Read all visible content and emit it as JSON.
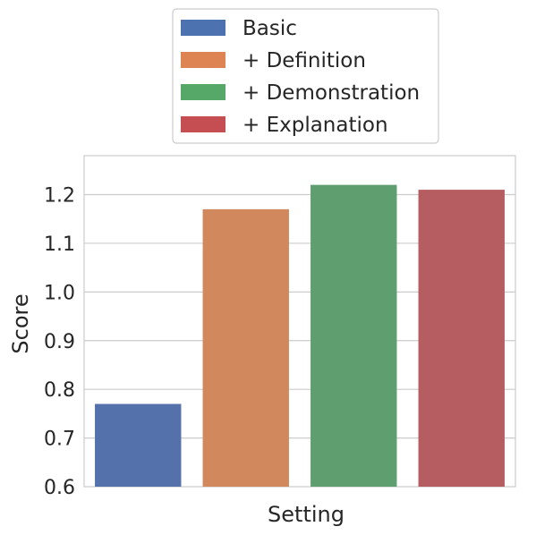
{
  "chart_data": {
    "type": "bar",
    "categories": [
      "Basic",
      "+ Definition",
      "+ Demonstration",
      "+ Explanation"
    ],
    "values": [
      0.77,
      1.17,
      1.22,
      1.21
    ],
    "colors": [
      "#5471ab",
      "#d1885c",
      "#5f9e6e",
      "#b55d60"
    ],
    "legend_colors": [
      "#4c72b0",
      "#dd8452",
      "#55a868",
      "#c44e52"
    ],
    "xlabel": "Setting",
    "ylabel": "Score",
    "ylim": [
      0.6,
      1.28
    ],
    "yticks": [
      0.6,
      0.7,
      0.8,
      0.9,
      1.0,
      1.1,
      1.2
    ],
    "ytick_labels": [
      "0.6",
      "0.7",
      "0.8",
      "0.9",
      "1.0",
      "1.1",
      "1.2"
    ],
    "grid": true,
    "legend_position": "top-center-outside"
  }
}
